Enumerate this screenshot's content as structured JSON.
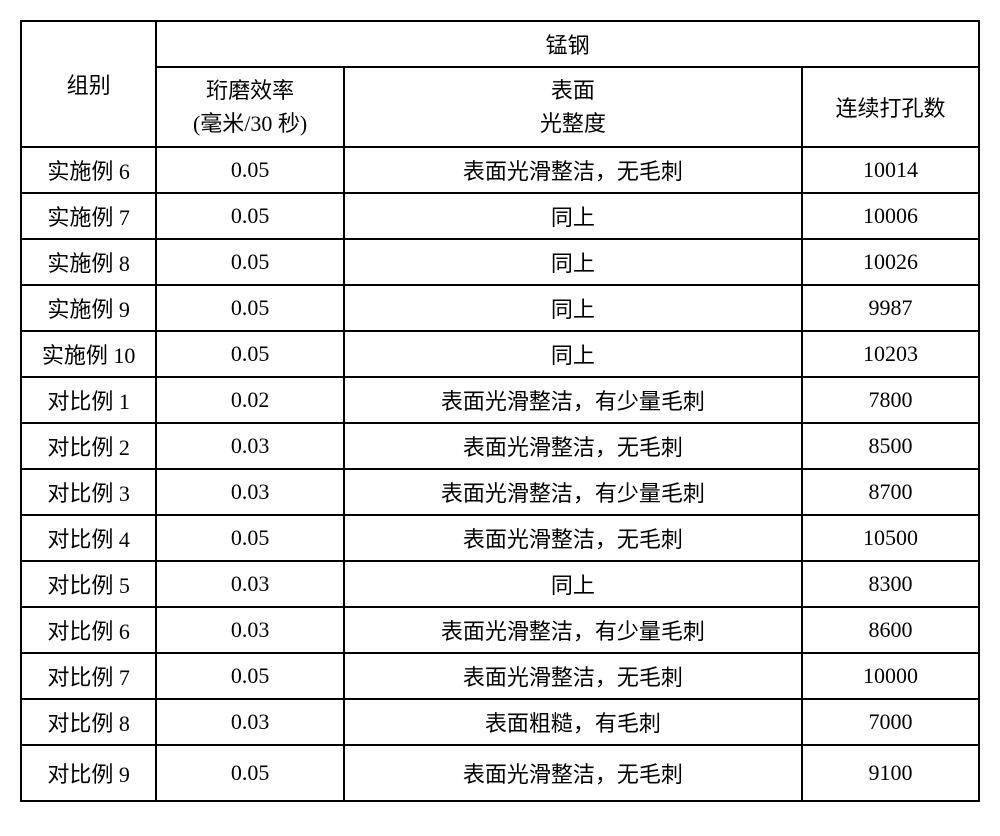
{
  "table": {
    "headers": {
      "group": "组别",
      "material": "锰钢",
      "efficiency_line1": "珩磨效率",
      "efficiency_line2": "(毫米/30 秒)",
      "surface_line1": "表面",
      "surface_line2": "光整度",
      "holes": "连续打孔数"
    },
    "rows": [
      {
        "group": "实施例 6",
        "efficiency": "0.05",
        "surface": "表面光滑整洁，无毛刺",
        "holes": "10014"
      },
      {
        "group": "实施例 7",
        "efficiency": "0.05",
        "surface": "同上",
        "holes": "10006"
      },
      {
        "group": "实施例 8",
        "efficiency": "0.05",
        "surface": "同上",
        "holes": "10026"
      },
      {
        "group": "实施例 9",
        "efficiency": "0.05",
        "surface": "同上",
        "holes": "9987"
      },
      {
        "group": "实施例 10",
        "efficiency": "0.05",
        "surface": "同上",
        "holes": "10203"
      },
      {
        "group": "对比例 1",
        "efficiency": "0.02",
        "surface": "表面光滑整洁，有少量毛刺",
        "holes": "7800"
      },
      {
        "group": "对比例 2",
        "efficiency": "0.03",
        "surface": "表面光滑整洁，无毛刺",
        "holes": "8500"
      },
      {
        "group": "对比例 3",
        "efficiency": "0.03",
        "surface": "表面光滑整洁，有少量毛刺",
        "holes": "8700"
      },
      {
        "group": "对比例 4",
        "efficiency": "0.05",
        "surface": "表面光滑整洁，无毛刺",
        "holes": "10500"
      },
      {
        "group": "对比例 5",
        "efficiency": "0.03",
        "surface": "同上",
        "holes": "8300"
      },
      {
        "group": "对比例 6",
        "efficiency": "0.03",
        "surface": "表面光滑整洁，有少量毛刺",
        "holes": "8600"
      },
      {
        "group": "对比例 7",
        "efficiency": "0.05",
        "surface": "表面光滑整洁，无毛刺",
        "holes": "10000"
      },
      {
        "group": "对比例 8",
        "efficiency": "0.03",
        "surface": "表面粗糙，有毛刺",
        "holes": "7000"
      },
      {
        "group": "对比例 9",
        "efficiency": "0.05",
        "surface": "表面光滑整洁，无毛刺",
        "holes": "9100"
      }
    ],
    "columns_widths": [
      "130px",
      "180px",
      "440px",
      "170px"
    ],
    "border_color": "#000000",
    "background_color": "#ffffff",
    "font_family": "SimSun",
    "font_size_pt": 16
  }
}
